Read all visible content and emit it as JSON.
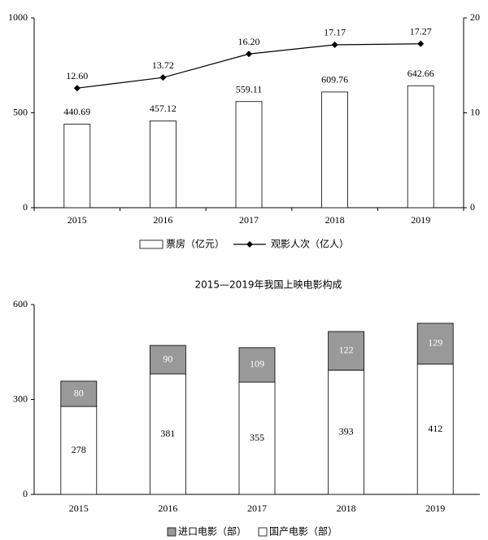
{
  "chart_data": [
    {
      "type": "combo",
      "categories": [
        "2015",
        "2016",
        "2017",
        "2018",
        "2019"
      ],
      "series": [
        {
          "name": "票房（亿元）",
          "type": "bar",
          "color": "#ffffff",
          "values": [
            440.69,
            457.12,
            559.11,
            609.76,
            642.66
          ]
        },
        {
          "name": "观影人次（亿人）",
          "type": "line",
          "axis": "y2",
          "color": "#000000",
          "values": [
            12.6,
            13.72,
            16.2,
            17.17,
            17.27
          ],
          "value_labels": [
            "12.60",
            "13.72",
            "16.20",
            "17.17",
            "17.27"
          ]
        }
      ],
      "ylim": [
        0,
        1000
      ],
      "yticks": [
        0,
        500,
        1000
      ],
      "y2lim": [
        0,
        20
      ],
      "y2ticks": [
        0,
        10,
        20
      ],
      "grid": false,
      "legend": "bottom"
    },
    {
      "type": "stacked_bar",
      "title": "2015—2019年我国上映电影构成",
      "categories": [
        "2015",
        "2016",
        "2017",
        "2018",
        "2019"
      ],
      "series": [
        {
          "name": "国产电影（部）",
          "color": "#ffffff",
          "values": [
            278,
            381,
            355,
            393,
            412
          ]
        },
        {
          "name": "进口电影（部）",
          "color": "#999999",
          "values": [
            80,
            90,
            109,
            122,
            129
          ]
        }
      ],
      "ylim": [
        0,
        600
      ],
      "yticks": [
        0,
        300,
        600
      ],
      "grid": false,
      "legend": "bottom"
    }
  ]
}
